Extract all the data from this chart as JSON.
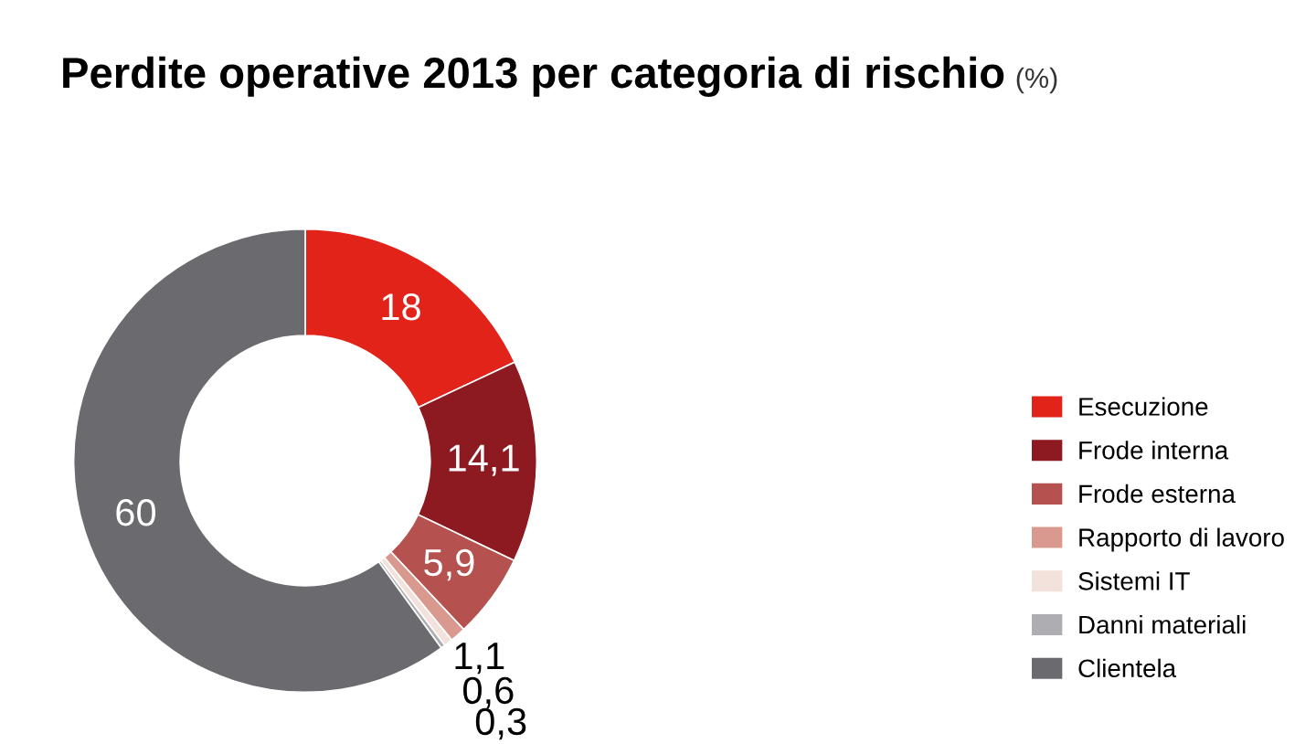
{
  "chart_data": {
    "type": "donut",
    "title": "Perdite operative 2013 per categoria di rischio",
    "subtitle": "(%)",
    "categories": [
      "Esecuzione",
      "Frode interna",
      "Frode esterna",
      "Rapporto di lavoro",
      "Sistemi IT",
      "Danni materiali",
      "Clientela"
    ],
    "values": [
      18,
      14.1,
      5.9,
      1.1,
      0.6,
      0.3,
      60
    ],
    "value_labels": [
      "18",
      "14,1",
      "5,9",
      "1,1",
      "0,6",
      "0,3",
      "60"
    ],
    "colors": [
      "#e2231a",
      "#8c1a20",
      "#b5524f",
      "#d9998f",
      "#f3e1dc",
      "#aeadb1",
      "#6b6a6f"
    ],
    "legend": "right"
  }
}
